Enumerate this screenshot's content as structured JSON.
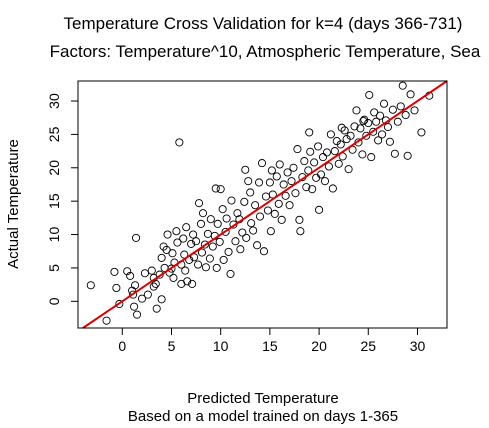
{
  "chart_data": {
    "type": "scatter",
    "title": "Temperature Cross Validation for k=4 (days 366-731)",
    "subtitle": "Factors: Temperature^10, Atmospheric Temperature, Sea",
    "xlabel": "Predicted Temperature",
    "xlabel_sub": "Based on a model trained on days 1-365",
    "ylabel": "Actual Temperature",
    "xlim": [
      -4.5,
      33
    ],
    "ylim": [
      -4,
      33
    ],
    "xticks": [
      0,
      5,
      10,
      15,
      20,
      25,
      30
    ],
    "yticks": [
      0,
      5,
      10,
      15,
      20,
      25,
      30
    ],
    "grid": false,
    "reference_line": {
      "intercept": 0,
      "slope": 1,
      "color": "#e00000"
    },
    "point_color": "#000000",
    "series": [
      {
        "points": [
          [
            -3.2,
            2.4
          ],
          [
            -1.6,
            -2.9
          ],
          [
            -0.8,
            4.4
          ],
          [
            -0.6,
            2.0
          ],
          [
            -0.3,
            -0.4
          ],
          [
            0.5,
            4.5
          ],
          [
            0.8,
            3.8
          ],
          [
            1.0,
            1.6
          ],
          [
            1.1,
            1.0
          ],
          [
            1.2,
            -0.8
          ],
          [
            1.3,
            2.4
          ],
          [
            1.4,
            9.5
          ],
          [
            1.5,
            -2.0
          ],
          [
            2.0,
            0.4
          ],
          [
            2.3,
            4.2
          ],
          [
            2.6,
            1.0
          ],
          [
            3.0,
            4.6
          ],
          [
            3.2,
            3.5
          ],
          [
            3.4,
            2.6
          ],
          [
            3.5,
            -1.1
          ],
          [
            3.8,
            4.0
          ],
          [
            4.0,
            6.5
          ],
          [
            4.0,
            0.3
          ],
          [
            4.2,
            8.2
          ],
          [
            4.3,
            5.0
          ],
          [
            4.6,
            10.0
          ],
          [
            4.8,
            4.3
          ],
          [
            5.0,
            4.9
          ],
          [
            5.1,
            7.2
          ],
          [
            5.2,
            3.5
          ],
          [
            5.3,
            5.8
          ],
          [
            5.5,
            10.5
          ],
          [
            5.6,
            8.8
          ],
          [
            5.8,
            23.8
          ],
          [
            6.0,
            5.5
          ],
          [
            6.0,
            2.6
          ],
          [
            6.2,
            9.4
          ],
          [
            6.3,
            7.0
          ],
          [
            6.4,
            4.6
          ],
          [
            6.5,
            11.1
          ],
          [
            6.6,
            3.0
          ],
          [
            6.8,
            6.2
          ],
          [
            7.0,
            8.6
          ],
          [
            7.1,
            2.6
          ],
          [
            7.3,
            6.6
          ],
          [
            7.5,
            9.0
          ],
          [
            7.7,
            5.5
          ],
          [
            7.8,
            14.7
          ],
          [
            8.0,
            11.6
          ],
          [
            8.1,
            7.3
          ],
          [
            8.2,
            13.2
          ],
          [
            8.4,
            8.5
          ],
          [
            8.5,
            5.1
          ],
          [
            8.7,
            10.1
          ],
          [
            8.9,
            6.4
          ],
          [
            9.0,
            12.3
          ],
          [
            9.2,
            8.2
          ],
          [
            9.4,
            9.8
          ],
          [
            9.6,
            5.0
          ],
          [
            9.7,
            11.6
          ],
          [
            9.9,
            8.9
          ],
          [
            10.0,
            16.8
          ],
          [
            10.2,
            13.8
          ],
          [
            10.3,
            6.2
          ],
          [
            10.5,
            10.4
          ],
          [
            10.6,
            12.4
          ],
          [
            10.8,
            7.4
          ],
          [
            11.0,
            4.1
          ],
          [
            11.1,
            15.1
          ],
          [
            11.3,
            11.5
          ],
          [
            11.5,
            9.0
          ],
          [
            11.7,
            13.2
          ],
          [
            11.9,
            12.3
          ],
          [
            12.0,
            7.8
          ],
          [
            12.2,
            10.3
          ],
          [
            12.4,
            14.9
          ],
          [
            12.6,
            9.5
          ],
          [
            12.8,
            18.0
          ],
          [
            13.0,
            16.3
          ],
          [
            13.1,
            11.7
          ],
          [
            13.3,
            10.6
          ],
          [
            13.5,
            14.4
          ],
          [
            13.7,
            8.4
          ],
          [
            13.9,
            17.8
          ],
          [
            14.0,
            12.7
          ],
          [
            14.2,
            20.7
          ],
          [
            14.4,
            7.5
          ],
          [
            14.6,
            15.7
          ],
          [
            14.8,
            13.6
          ],
          [
            15.0,
            17.8
          ],
          [
            15.1,
            10.5
          ],
          [
            15.3,
            16.0
          ],
          [
            15.5,
            13.1
          ],
          [
            15.7,
            18.7
          ],
          [
            15.9,
            14.6
          ],
          [
            16.0,
            20.5
          ],
          [
            16.2,
            12.2
          ],
          [
            16.4,
            17.5
          ],
          [
            16.6,
            15.8
          ],
          [
            16.8,
            19.3
          ],
          [
            17.0,
            14.4
          ],
          [
            17.2,
            18.0
          ],
          [
            17.4,
            20.0
          ],
          [
            17.6,
            16.2
          ],
          [
            17.8,
            22.8
          ],
          [
            18.0,
            12.2
          ],
          [
            18.1,
            10.5
          ],
          [
            18.3,
            18.6
          ],
          [
            18.5,
            21.0
          ],
          [
            18.7,
            17.1
          ],
          [
            18.9,
            19.6
          ],
          [
            19.1,
            22.4
          ],
          [
            19.3,
            16.8
          ],
          [
            19.5,
            20.8
          ],
          [
            19.7,
            18.5
          ],
          [
            19.9,
            23.2
          ],
          [
            20.0,
            13.7
          ],
          [
            20.2,
            19.0
          ],
          [
            20.4,
            21.6
          ],
          [
            20.6,
            18.0
          ],
          [
            20.8,
            22.3
          ],
          [
            21.0,
            20.2
          ],
          [
            21.2,
            25.0
          ],
          [
            21.4,
            16.9
          ],
          [
            21.6,
            22.5
          ],
          [
            21.8,
            24.0
          ],
          [
            22.0,
            20.6
          ],
          [
            22.2,
            23.5
          ],
          [
            22.4,
            21.7
          ],
          [
            22.6,
            25.6
          ],
          [
            22.8,
            24.3
          ],
          [
            23.0,
            19.8
          ],
          [
            23.2,
            24.8
          ],
          [
            23.4,
            22.7
          ],
          [
            23.6,
            26.2
          ],
          [
            23.8,
            28.6
          ],
          [
            24.0,
            23.8
          ],
          [
            24.2,
            25.9
          ],
          [
            24.4,
            22.0
          ],
          [
            24.6,
            27.2
          ],
          [
            24.8,
            24.8
          ],
          [
            25.0,
            26.7
          ],
          [
            25.1,
            30.9
          ],
          [
            25.3,
            21.6
          ],
          [
            25.5,
            25.4
          ],
          [
            25.6,
            28.3
          ],
          [
            25.8,
            26.9
          ],
          [
            26.0,
            24.1
          ],
          [
            26.2,
            27.8
          ],
          [
            26.4,
            25.0
          ],
          [
            26.6,
            29.6
          ],
          [
            26.8,
            27.1
          ],
          [
            27.0,
            26.1
          ],
          [
            27.2,
            23.9
          ],
          [
            27.5,
            28.7
          ],
          [
            27.7,
            22.1
          ],
          [
            28.0,
            26.9
          ],
          [
            28.3,
            29.2
          ],
          [
            28.5,
            32.3
          ],
          [
            28.8,
            27.9
          ],
          [
            29.0,
            21.8
          ],
          [
            29.3,
            31.0
          ],
          [
            29.7,
            28.6
          ],
          [
            30.4,
            25.3
          ],
          [
            31.2,
            30.8
          ],
          [
            9.5,
            16.9
          ],
          [
            15.2,
            19.6
          ],
          [
            19.0,
            25.3
          ],
          [
            24.5,
            27.0
          ],
          [
            22.3,
            26.0
          ],
          [
            12.5,
            19.7
          ],
          [
            7.2,
            10.0
          ],
          [
            4.5,
            7.7
          ],
          [
            3.2,
            2.2
          ]
        ]
      }
    ]
  }
}
